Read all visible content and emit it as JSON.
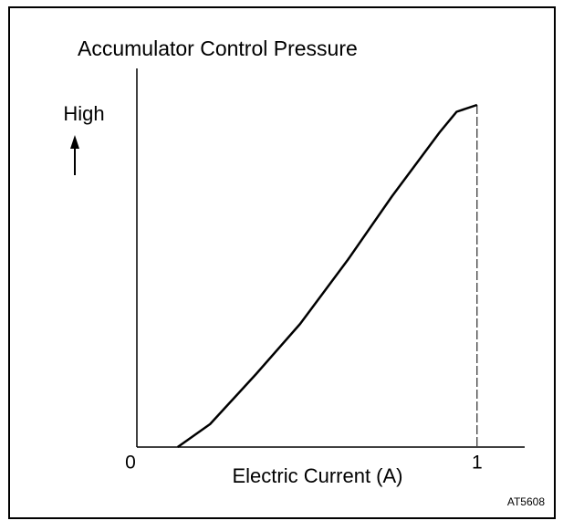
{
  "chart_data": {
    "type": "line",
    "title": "Accumulator Control Pressure",
    "x_label": "Electric Current (A)",
    "y_label": "High",
    "figure_id": "AT5608",
    "x": [
      0.12,
      0.215,
      0.35,
      0.48,
      0.62,
      0.75,
      0.89,
      0.94,
      1.0
    ],
    "values": [
      0,
      0.067,
      0.213,
      0.36,
      0.547,
      0.733,
      0.92,
      0.98,
      1.0
    ],
    "color": "#000000",
    "xlim": [
      0,
      1.14
    ],
    "xticks": [
      0,
      1
    ],
    "ylim": [
      0,
      1
    ]
  }
}
